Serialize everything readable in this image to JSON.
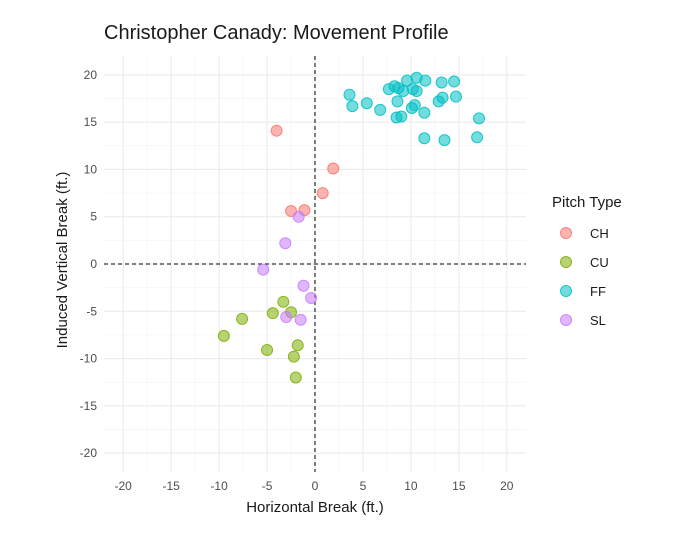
{
  "chart_data": {
    "type": "scatter",
    "title": "Christopher Canady: Movement Profile",
    "xlabel": "Horizontal Break (ft.)",
    "ylabel": "Induced Vertical Break (ft.)",
    "xlim": [
      -22,
      22
    ],
    "ylim": [
      -22,
      22
    ],
    "xticks": [
      -20,
      -15,
      -10,
      -5,
      0,
      5,
      10,
      15,
      20
    ],
    "yticks": [
      -20,
      -15,
      -10,
      -5,
      0,
      5,
      10,
      15,
      20
    ],
    "grid": true,
    "reference_lines": {
      "x": 0,
      "y": 0,
      "style": "dashed"
    },
    "legend": {
      "title": "Pitch Type",
      "position": "right"
    },
    "series": [
      {
        "name": "CH",
        "color": "#F8766D",
        "points": [
          [
            -4,
            14.1
          ],
          [
            1.9,
            10.1
          ],
          [
            0.8,
            7.5
          ],
          [
            -1.1,
            5.7
          ],
          [
            -2.5,
            5.6
          ]
        ]
      },
      {
        "name": "CU",
        "color": "#7CAE00",
        "points": [
          [
            -9.5,
            -7.6
          ],
          [
            -7.6,
            -5.8
          ],
          [
            -4.4,
            -5.2
          ],
          [
            -3.3,
            -4
          ],
          [
            -2.5,
            -5.1
          ],
          [
            -5,
            -9.1
          ],
          [
            -1.8,
            -8.6
          ],
          [
            -2.2,
            -9.8
          ],
          [
            -2,
            -12
          ]
        ]
      },
      {
        "name": "FF",
        "color": "#00BFC4",
        "points": [
          [
            3.6,
            17.9
          ],
          [
            3.9,
            16.7
          ],
          [
            5.4,
            17
          ],
          [
            6.8,
            16.3
          ],
          [
            7.7,
            18.5
          ],
          [
            8.3,
            18.8
          ],
          [
            8.7,
            18.6
          ],
          [
            9.2,
            18.3
          ],
          [
            9.6,
            19.4
          ],
          [
            10.2,
            18.5
          ],
          [
            10.6,
            19.7
          ],
          [
            11.5,
            19.4
          ],
          [
            10.1,
            16.5
          ],
          [
            10.6,
            18.3
          ],
          [
            8.6,
            17.2
          ],
          [
            8.5,
            15.5
          ],
          [
            9,
            15.6
          ],
          [
            10.4,
            16.8
          ],
          [
            11.4,
            16
          ],
          [
            13.2,
            19.2
          ],
          [
            14.5,
            19.3
          ],
          [
            12.9,
            17.2
          ],
          [
            13.3,
            17.6
          ],
          [
            14.7,
            17.7
          ],
          [
            17.1,
            15.4
          ],
          [
            16.9,
            13.4
          ],
          [
            13.5,
            13.1
          ],
          [
            11.4,
            13.3
          ]
        ]
      },
      {
        "name": "SL",
        "color": "#C77CFF",
        "points": [
          [
            -3.1,
            2.2
          ],
          [
            -1.7,
            5
          ],
          [
            -5.4,
            -0.6
          ],
          [
            -1.2,
            -2.3
          ],
          [
            -0.4,
            -3.6
          ],
          [
            -3,
            -5.6
          ],
          [
            -1.5,
            -5.9
          ]
        ]
      }
    ]
  }
}
